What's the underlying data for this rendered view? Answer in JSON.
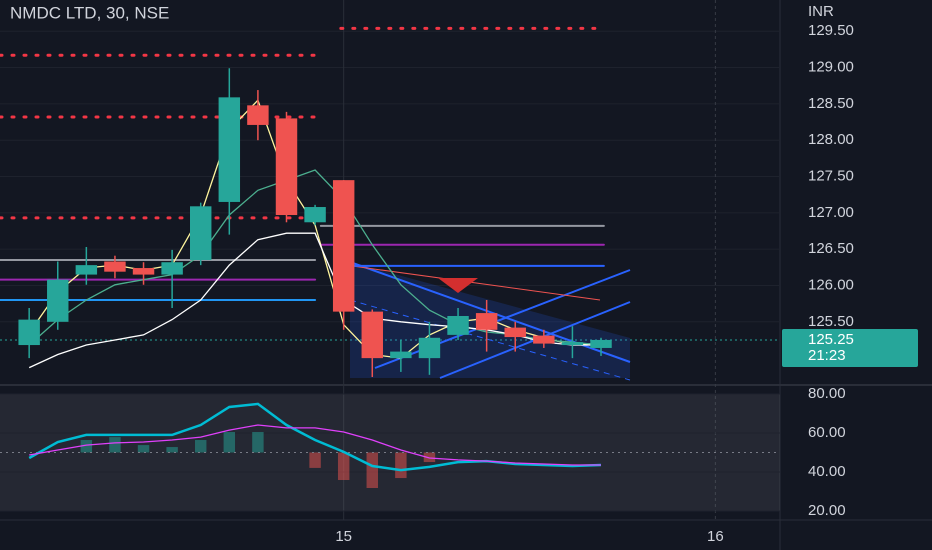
{
  "chart_data": [
    {
      "type": "candlestick",
      "title": "NMDC LTD, 30, NSE",
      "currency": "INR",
      "x": [
        0,
        1,
        2,
        3,
        4,
        5,
        6,
        7,
        8,
        9,
        10,
        11,
        12,
        13,
        14,
        15,
        16,
        17,
        18,
        19,
        20
      ],
      "open": [
        125.18,
        125.5,
        126.15,
        126.33,
        126.24,
        126.15,
        126.35,
        127.15,
        128.48,
        128.3,
        126.87,
        127.45,
        125.64,
        125.0,
        125.0,
        125.32,
        125.62,
        125.42,
        125.31,
        125.18,
        125.14
      ],
      "high": [
        125.69,
        126.33,
        126.53,
        126.41,
        126.32,
        126.49,
        127.14,
        128.99,
        128.69,
        128.39,
        127.11,
        127.45,
        125.67,
        125.25,
        125.5,
        125.69,
        125.8,
        125.5,
        125.39,
        125.44,
        125.28
      ],
      "low": [
        125.0,
        125.39,
        126.01,
        126.1,
        126.01,
        125.69,
        126.28,
        126.7,
        128.0,
        126.87,
        126.83,
        125.39,
        124.74,
        124.81,
        124.77,
        125.25,
        125.09,
        125.09,
        125.14,
        125.0,
        125.03
      ],
      "close": [
        125.53,
        126.08,
        126.28,
        126.19,
        126.15,
        126.32,
        127.09,
        128.59,
        128.21,
        126.97,
        127.08,
        125.64,
        125.0,
        125.09,
        125.28,
        125.58,
        125.39,
        125.29,
        125.2,
        125.22,
        125.25
      ],
      "up_color": "#26a69a",
      "down_color": "#ef5350",
      "series": [
        {
          "color": "#fff59d",
          "values": [
            125.35,
            125.91,
            126.24,
            126.28,
            126.21,
            126.28,
            126.97,
            128.14,
            128.55,
            127.45,
            126.83,
            125.46,
            125.05,
            125.0,
            125.32,
            125.5,
            125.55,
            125.39,
            125.28,
            125.18,
            125.21
          ]
        },
        {
          "color": "#4caf8f",
          "values": [
            125.18,
            125.53,
            125.8,
            126.01,
            126.08,
            126.15,
            126.42,
            126.97,
            127.31,
            127.45,
            127.59,
            127.18,
            126.56,
            126.01,
            125.66,
            125.46,
            125.36,
            125.32,
            125.25,
            125.22,
            125.18
          ]
        },
        {
          "color": "#ffffff",
          "values": [
            124.87,
            125.05,
            125.18,
            125.25,
            125.32,
            125.53,
            125.8,
            126.28,
            126.63,
            126.72,
            126.72,
            125.8,
            125.55,
            125.5,
            125.46,
            125.43,
            125.39,
            125.32,
            125.22,
            125.18,
            125.18
          ]
        }
      ],
      "levels": [
        {
          "value": 129.54,
          "from": 10.9,
          "to": 20.1,
          "color": "#f23645",
          "style": "dotted"
        },
        {
          "value": 129.17,
          "from": -1.02,
          "to": 10.2,
          "color": "#f23645",
          "style": "dotted"
        },
        {
          "value": 128.32,
          "from": -1.02,
          "to": 10.2,
          "color": "#f23645",
          "style": "dotted"
        },
        {
          "value": 126.93,
          "from": -1.02,
          "to": 10.2,
          "color": "#f23645",
          "style": "dotted"
        },
        {
          "value": 126.82,
          "from": 10.2,
          "to": 20.1,
          "color": "#9598a1",
          "style": "solid"
        },
        {
          "value": 126.56,
          "from": 10.2,
          "to": 20.1,
          "color": "#9c27b0",
          "style": "solid"
        },
        {
          "value": 126.27,
          "from": 11.0,
          "to": 20.1,
          "color": "#2962ff",
          "style": "solid"
        },
        {
          "value": 126.35,
          "from": -1.02,
          "to": 10.0,
          "color": "#9598a1",
          "style": "solid"
        },
        {
          "value": 126.08,
          "from": -1.02,
          "to": 10.0,
          "color": "#9c27b0",
          "style": "solid"
        },
        {
          "value": 125.8,
          "from": -1.02,
          "to": 10.0,
          "color": "#2196f3",
          "style": "solid"
        }
      ],
      "last_price": 125.25,
      "countdown": "21:23",
      "xlim": [
        -1.02,
        26.26
      ],
      "xticks": [
        {
          "value": 11,
          "label": "15"
        },
        {
          "value": 24,
          "label": "16"
        }
      ],
      "ylim": [
        124.63,
        129.93
      ],
      "yticks": [
        {
          "value": 125.5,
          "label": "125.50"
        },
        {
          "value": 126,
          "label": "126.00"
        },
        {
          "value": 126.5,
          "label": "126.50"
        },
        {
          "value": 127,
          "label": "127.00"
        },
        {
          "value": 127.5,
          "label": "127.50"
        },
        {
          "value": 128,
          "label": "128.00"
        },
        {
          "value": 128.5,
          "label": "128.50"
        },
        {
          "value": 129,
          "label": "129.00"
        },
        {
          "value": 129.5,
          "label": "129.50"
        }
      ],
      "grid": true
    },
    {
      "type": "oscillator",
      "x": [
        0,
        1,
        2,
        3,
        4,
        5,
        6,
        7,
        8,
        9,
        10,
        11,
        12,
        13,
        14,
        15,
        16,
        17,
        18,
        19,
        20
      ],
      "series": [
        {
          "color": "#00bcd4",
          "values": [
            47.2,
            55.4,
            59.0,
            59.0,
            59.0,
            59.0,
            64.1,
            73.3,
            74.9,
            64.1,
            56.4,
            50.3,
            43.1,
            41.0,
            42.6,
            45.1,
            45.6,
            44.1,
            43.6,
            43.1,
            43.6
          ]
        },
        {
          "color": "#e040fb",
          "values": [
            48.7,
            51.3,
            53.8,
            54.9,
            55.4,
            56.4,
            57.9,
            61.5,
            64.1,
            62.6,
            62.6,
            60.5,
            56.4,
            51.3,
            47.2,
            46.2,
            45.6,
            44.6,
            44.1,
            43.6,
            43.6
          ]
        }
      ],
      "histogram": {
        "base": 50,
        "up_color": "#26a69a",
        "down_color": "#ef5350",
        "values": [
          null,
          null,
          56.4,
          57.9,
          53.8,
          52.8,
          56.4,
          60.5,
          60.5,
          null,
          42.1,
          35.9,
          31.8,
          36.9,
          45.1,
          null,
          null,
          null,
          null,
          null,
          null
        ]
      },
      "xlim": [
        -1.02,
        26.26
      ],
      "ylim": [
        15.4,
        84.6
      ],
      "yticks": [
        {
          "value": 20,
          "label": "20.00"
        },
        {
          "value": 40,
          "label": "40.00"
        },
        {
          "value": 60,
          "label": "60.00"
        },
        {
          "value": 80,
          "label": "80.00"
        }
      ],
      "grid": true
    }
  ]
}
